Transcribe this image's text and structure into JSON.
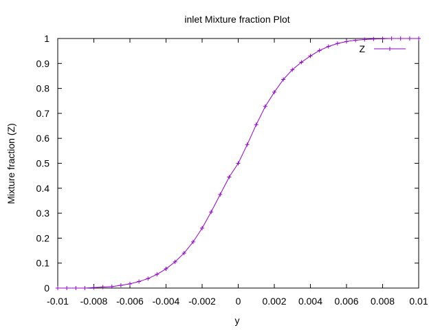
{
  "chart_data": {
    "type": "line",
    "title": "inlet Mixture fraction Plot",
    "xlabel": "y",
    "ylabel": "Mixture fraction (Z)",
    "xlim": [
      -0.01,
      0.01
    ],
    "ylim": [
      0,
      1
    ],
    "xticks": [
      "-0.01",
      "-0.008",
      "-0.006",
      "-0.004",
      "-0.002",
      "0",
      "0.002",
      "0.004",
      "0.006",
      "0.008",
      "0.01"
    ],
    "xtick_values": [
      -0.01,
      -0.008,
      -0.006,
      -0.004,
      -0.002,
      0,
      0.002,
      0.004,
      0.006,
      0.008,
      0.01
    ],
    "yticks": [
      "0",
      "0.1",
      "0.2",
      "0.3",
      "0.4",
      "0.5",
      "0.6",
      "0.7",
      "0.8",
      "0.9",
      "1"
    ],
    "ytick_values": [
      0,
      0.1,
      0.2,
      0.3,
      0.4,
      0.5,
      0.6,
      0.7,
      0.8,
      0.9,
      1
    ],
    "grid": false,
    "legend_position": "top-right",
    "color": "#9400d3",
    "marker": "plus",
    "series": [
      {
        "name": "Z",
        "x": [
          -0.01,
          -0.0095,
          -0.009,
          -0.0085,
          -0.008,
          -0.0075,
          -0.007,
          -0.0065,
          -0.006,
          -0.0055,
          -0.005,
          -0.0045,
          -0.004,
          -0.0035,
          -0.003,
          -0.0025,
          -0.002,
          -0.0015,
          -0.001,
          -0.0005,
          0,
          0.0005,
          0.001,
          0.0015,
          0.002,
          0.0025,
          0.003,
          0.0035,
          0.004,
          0.0045,
          0.005,
          0.0055,
          0.006,
          0.0065,
          0.007,
          0.0075,
          0.008,
          0.0085,
          0.009,
          0.0095,
          0.01
        ],
        "y": [
          0.0,
          0.0,
          0.0,
          0.0,
          0.002,
          0.004,
          0.006,
          0.011,
          0.017,
          0.026,
          0.038,
          0.055,
          0.077,
          0.105,
          0.14,
          0.185,
          0.24,
          0.305,
          0.375,
          0.445,
          0.5,
          0.575,
          0.655,
          0.728,
          0.785,
          0.836,
          0.875,
          0.905,
          0.93,
          0.952,
          0.968,
          0.98,
          0.988,
          0.993,
          0.996,
          0.998,
          0.999,
          1.0,
          1.0,
          1.0,
          1.0
        ]
      }
    ]
  }
}
